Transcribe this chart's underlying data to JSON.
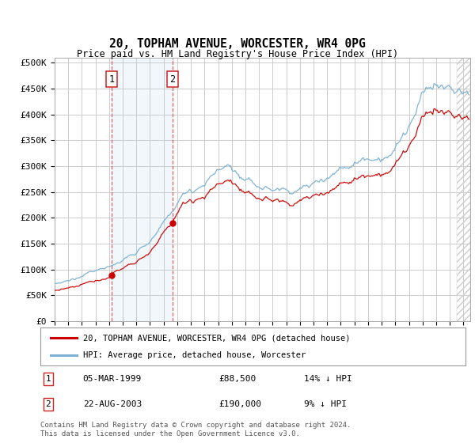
{
  "title": "20, TOPHAM AVENUE, WORCESTER, WR4 0PG",
  "subtitle": "Price paid vs. HM Land Registry's House Price Index (HPI)",
  "ylabel_ticks": [
    "£0",
    "£50K",
    "£100K",
    "£150K",
    "£200K",
    "£250K",
    "£300K",
    "£350K",
    "£400K",
    "£450K",
    "£500K"
  ],
  "ytick_values": [
    0,
    50000,
    100000,
    150000,
    200000,
    250000,
    300000,
    350000,
    400000,
    450000,
    500000
  ],
  "ylim": [
    0,
    510000
  ],
  "xlim_start": 1995.0,
  "xlim_end": 2025.5,
  "red_line_color": "#cc0000",
  "blue_line_color": "#7ab0d4",
  "sale1_x": 1999.17,
  "sale1_y": 88500,
  "sale2_x": 2003.64,
  "sale2_y": 190000,
  "sale1_label": "05-MAR-1999",
  "sale1_price": "£88,500",
  "sale1_hpi": "14% ↓ HPI",
  "sale2_label": "22-AUG-2003",
  "sale2_price": "£190,000",
  "sale2_hpi": "9% ↓ HPI",
  "legend_line1": "20, TOPHAM AVENUE, WORCESTER, WR4 0PG (detached house)",
  "legend_line2": "HPI: Average price, detached house, Worcester",
  "footnote": "Contains HM Land Registry data © Crown copyright and database right 2024.\nThis data is licensed under the Open Government Licence v3.0.",
  "bg_color": "#ffffff",
  "grid_color": "#cccccc",
  "shade_color": "#ddeeff"
}
